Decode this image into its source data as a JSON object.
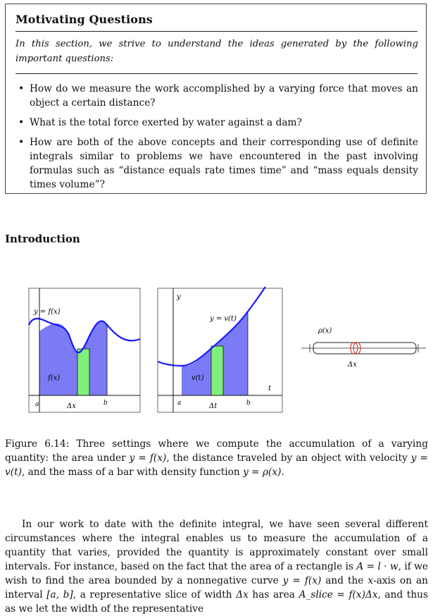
{
  "motivating_box": {
    "title": "Motivating Questions",
    "intro": "In this section, we strive to understand the ideas generated by the following important questions:",
    "questions": [
      "How do we measure the work accomplished by a varying force that moves an object a certain distance?",
      "What is the total force exerted by water against a dam?",
      "How are both of the above concepts and their corresponding use of definite integrals similar to problems we have encountered in the past involving formulas such as “distance equals rate times time” and “mass equals density times volume”?"
    ]
  },
  "section": {
    "heading": "Introduction"
  },
  "figure": {
    "panel1": {
      "curve_label": "y = f(x)",
      "height_label": "f(x)",
      "left_label": "a",
      "right_label": "b",
      "width_label": "Δx"
    },
    "panel2": {
      "y_axis_label": "y",
      "curve_label": "y = v(t)",
      "height_label": "v(t)",
      "left_label": "a",
      "right_label": "b",
      "width_label": "Δt",
      "t_axis_label": "t"
    },
    "panel3": {
      "density_label": "ρ(x)",
      "width_label": "Δx"
    },
    "colors": {
      "area": "#7b7bf5",
      "slice": "#7ef07a",
      "curve": "#1a1aff",
      "bar_slice": "#d81b1b"
    },
    "caption": {
      "prefix": "Figure 6.14: Three settings where we compute the accumulation of a varying quantity: the area under ",
      "m1": "y = f(x)",
      "mid1": ", the distance traveled by an object with velocity ",
      "m2": "y = v(t)",
      "mid2": ", and the mass of a bar with density function ",
      "m3": "y = ρ(x)",
      "suffix": "."
    }
  },
  "paragraph": {
    "t1": "In our work to date with the definite integral, we have seen several different circumstances where the integral enables us to measure the accumulation of a quantity that varies, provided the quantity is approximately constant over small intervals. For instance, based on the fact that the area of a rectangle is ",
    "m1": "A = l · w",
    "t2": ", if we wish to find the area bounded by a nonnegative curve ",
    "m2": "y = f(x)",
    "t3": " and the ",
    "m3": "x",
    "t4": "-axis on an interval ",
    "m4": "[a, b]",
    "t5": ", a representative slice of width ",
    "m5": "Δx",
    "t6": " has area ",
    "m6": "A_slice = f(x)Δx",
    "t7": ", and thus as we let the width of the representative"
  }
}
